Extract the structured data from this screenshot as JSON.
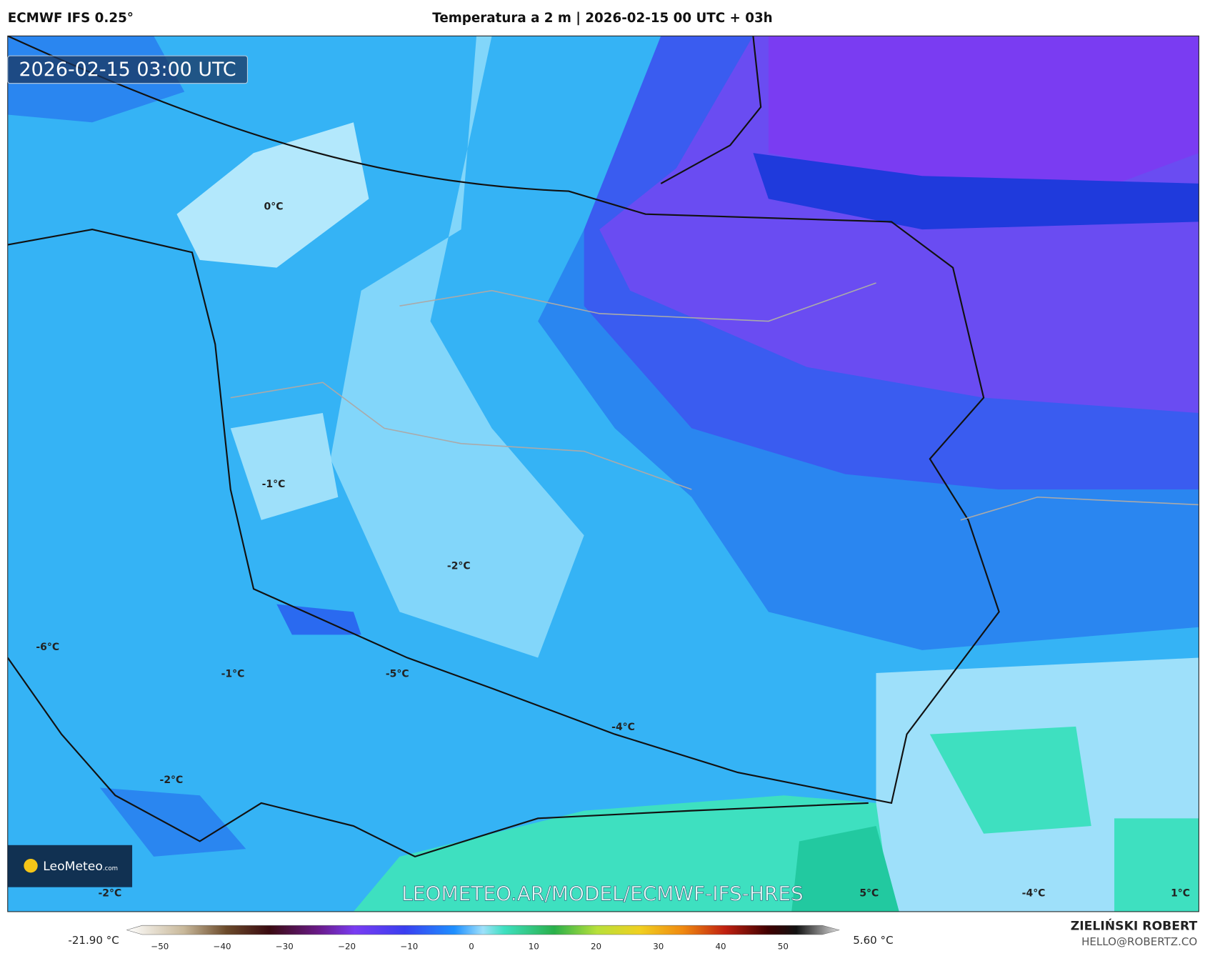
{
  "header": {
    "model": "ECMWF IFS 0.25°",
    "title": "Temperatura a 2 m | 2026-02-15 00 UTC + 03h"
  },
  "map": {
    "timestamp": "2026-02-15 03:00 UTC",
    "watermark": "LEOMETEO.AR/MODEL/ECMWF-IFS-HRES",
    "logo": {
      "name": "LeoMeteo",
      "suffix": ".com"
    },
    "labels": [
      "0°C",
      "-1°C",
      "-2°C",
      "-6°C",
      "-1°C",
      "-5°C",
      "-4°C",
      "-2°C",
      "-2°C",
      "5°C",
      "-4°C",
      "1°C"
    ]
  },
  "colorbar": {
    "min_label": "-21.90 °C",
    "max_label": "5.60 °C",
    "ticks": [
      "−50",
      "−40",
      "−30",
      "−20",
      "−10",
      "0",
      "10",
      "20",
      "30",
      "40",
      "50"
    ]
  },
  "footer": {
    "author": "ZIELIŃSKI ROBERT",
    "contact": "HELLO@ROBERTZ.CO"
  }
}
